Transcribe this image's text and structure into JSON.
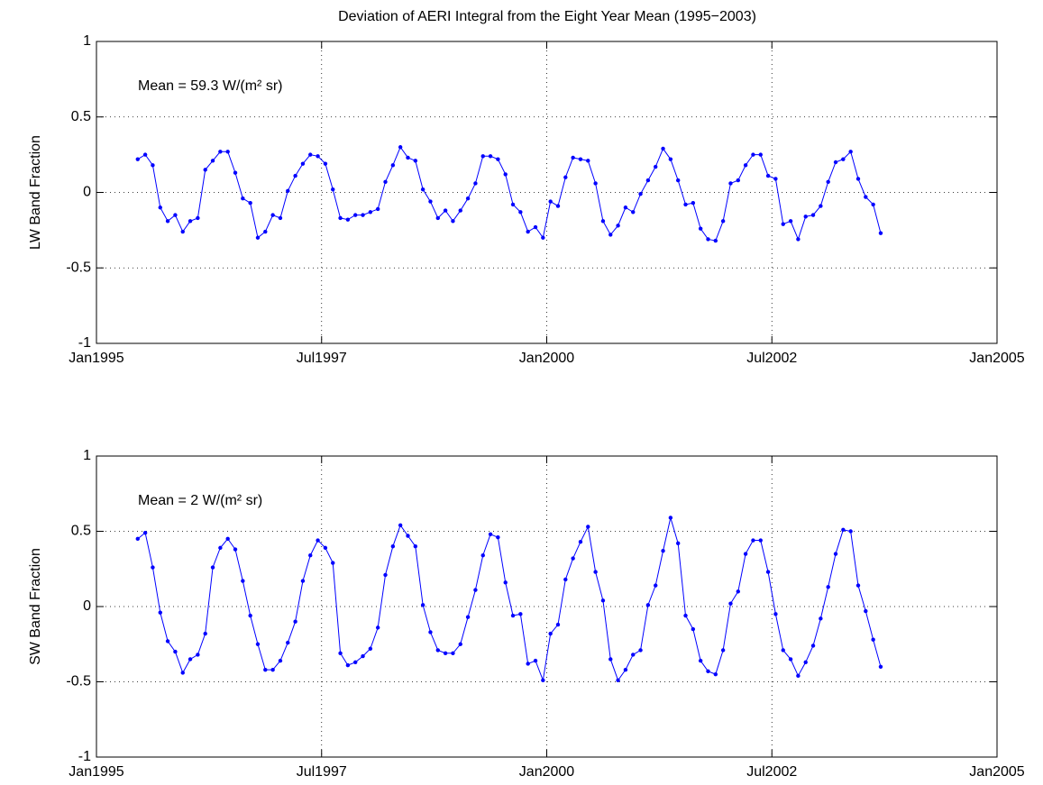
{
  "chart_data": [
    {
      "type": "line",
      "title": "Deviation of AERI Integral from the Eight Year Mean (1995−2003)",
      "ylabel": "LW Band Fraction",
      "annotation": "Mean = 59.3 W/(m² sr)",
      "color": "#0000ff",
      "grid": true,
      "x": [
        "1995-06",
        "1995-07",
        "1995-08",
        "1995-09",
        "1995-10",
        "1995-11",
        "1995-12",
        "1996-01",
        "1996-02",
        "1996-03",
        "1996-04",
        "1996-05",
        "1996-06",
        "1996-07",
        "1996-08",
        "1996-09",
        "1996-10",
        "1996-11",
        "1996-12",
        "1997-01",
        "1997-02",
        "1997-03",
        "1997-04",
        "1997-05",
        "1997-06",
        "1997-07",
        "1997-08",
        "1997-09",
        "1997-10",
        "1997-11",
        "1997-12",
        "1998-01",
        "1998-02",
        "1998-03",
        "1998-04",
        "1998-05",
        "1998-06",
        "1998-07",
        "1998-08",
        "1998-09",
        "1998-10",
        "1998-11",
        "1998-12",
        "1999-01",
        "1999-02",
        "1999-03",
        "1999-04",
        "1999-05",
        "1999-06",
        "1999-07",
        "1999-08",
        "1999-09",
        "1999-10",
        "1999-11",
        "1999-12",
        "2000-01",
        "2000-02",
        "2000-03",
        "2000-04",
        "2000-05",
        "2000-06",
        "2000-07",
        "2000-08",
        "2000-09",
        "2000-10",
        "2000-11",
        "2000-12",
        "2001-01",
        "2001-02",
        "2001-03",
        "2001-04",
        "2001-05",
        "2001-06",
        "2001-07",
        "2001-08",
        "2001-09",
        "2001-10",
        "2001-11",
        "2001-12",
        "2002-01",
        "2002-02",
        "2002-03",
        "2002-04",
        "2002-05",
        "2002-06",
        "2002-07",
        "2002-08",
        "2002-09",
        "2002-10",
        "2002-11",
        "2002-12",
        "2003-01",
        "2003-02",
        "2003-03",
        "2003-04",
        "2003-05",
        "2003-06",
        "2003-07",
        "2003-08",
        "2003-09"
      ],
      "values": [
        0.22,
        0.25,
        0.18,
        -0.1,
        -0.19,
        -0.15,
        -0.26,
        -0.19,
        -0.17,
        0.15,
        0.21,
        0.27,
        0.27,
        0.13,
        -0.04,
        -0.07,
        -0.3,
        -0.26,
        -0.15,
        -0.17,
        0.01,
        0.11,
        0.19,
        0.25,
        0.24,
        0.19,
        0.02,
        -0.17,
        -0.18,
        -0.15,
        -0.15,
        -0.13,
        -0.11,
        0.07,
        0.18,
        0.3,
        0.23,
        0.21,
        0.02,
        -0.06,
        -0.17,
        -0.12,
        -0.19,
        -0.12,
        -0.04,
        0.06,
        0.24,
        0.24,
        0.22,
        0.12,
        -0.08,
        -0.13,
        -0.26,
        -0.23,
        -0.3,
        -0.06,
        -0.09,
        0.1,
        0.23,
        0.22,
        0.21,
        0.06,
        -0.19,
        -0.28,
        -0.22,
        -0.1,
        -0.13,
        -0.01,
        0.08,
        0.17,
        0.29,
        0.22,
        0.08,
        -0.08,
        -0.07,
        -0.24,
        -0.31,
        -0.32,
        -0.19,
        0.06,
        0.08,
        0.18,
        0.25,
        0.25,
        0.11,
        0.09,
        -0.21,
        -0.19,
        -0.31,
        -0.16,
        -0.15,
        -0.09,
        0.07,
        0.2,
        0.22,
        0.27,
        0.09,
        -0.03,
        -0.08,
        -0.27
      ],
      "xlim": [
        "1995-01",
        "2005-01"
      ],
      "xticks": [
        {
          "value": "1995-01",
          "label": "Jan1995"
        },
        {
          "value": "1997-07",
          "label": "Jul1997"
        },
        {
          "value": "2000-01",
          "label": "Jan2000"
        },
        {
          "value": "2002-07",
          "label": "Jul2002"
        },
        {
          "value": "2005-01",
          "label": "Jan2005"
        }
      ],
      "ylim": [
        -1,
        1
      ],
      "yticks": [
        -1,
        -0.5,
        0,
        0.5,
        1
      ]
    },
    {
      "type": "line",
      "ylabel": "SW Band Fraction",
      "annotation": "Mean = 2 W/(m² sr)",
      "color": "#0000ff",
      "grid": true,
      "x": [
        "1995-06",
        "1995-07",
        "1995-08",
        "1995-09",
        "1995-10",
        "1995-11",
        "1995-12",
        "1996-01",
        "1996-02",
        "1996-03",
        "1996-04",
        "1996-05",
        "1996-06",
        "1996-07",
        "1996-08",
        "1996-09",
        "1996-10",
        "1996-11",
        "1996-12",
        "1997-01",
        "1997-02",
        "1997-03",
        "1997-04",
        "1997-05",
        "1997-06",
        "1997-07",
        "1997-08",
        "1997-09",
        "1997-10",
        "1997-11",
        "1997-12",
        "1998-01",
        "1998-02",
        "1998-03",
        "1998-04",
        "1998-05",
        "1998-06",
        "1998-07",
        "1998-08",
        "1998-09",
        "1998-10",
        "1998-11",
        "1998-12",
        "1999-01",
        "1999-02",
        "1999-03",
        "1999-04",
        "1999-05",
        "1999-06",
        "1999-07",
        "1999-08",
        "1999-09",
        "1999-10",
        "1999-11",
        "1999-12",
        "2000-01",
        "2000-02",
        "2000-03",
        "2000-04",
        "2000-05",
        "2000-06",
        "2000-07",
        "2000-08",
        "2000-09",
        "2000-10",
        "2000-11",
        "2000-12",
        "2001-01",
        "2001-02",
        "2001-03",
        "2001-04",
        "2001-05",
        "2001-06",
        "2001-07",
        "2001-08",
        "2001-09",
        "2001-10",
        "2001-11",
        "2001-12",
        "2002-01",
        "2002-02",
        "2002-03",
        "2002-04",
        "2002-05",
        "2002-06",
        "2002-07",
        "2002-08",
        "2002-09",
        "2002-10",
        "2002-11",
        "2002-12",
        "2003-01",
        "2003-02",
        "2003-03",
        "2003-04",
        "2003-05",
        "2003-06",
        "2003-07",
        "2003-08",
        "2003-09"
      ],
      "values": [
        0.45,
        0.49,
        0.26,
        -0.04,
        -0.23,
        -0.3,
        -0.44,
        -0.35,
        -0.32,
        -0.18,
        0.26,
        0.39,
        0.45,
        0.38,
        0.17,
        -0.06,
        -0.25,
        -0.42,
        -0.42,
        -0.36,
        -0.24,
        -0.1,
        0.17,
        0.34,
        0.44,
        0.39,
        0.29,
        -0.31,
        -0.39,
        -0.37,
        -0.33,
        -0.28,
        -0.14,
        0.21,
        0.4,
        0.54,
        0.47,
        0.4,
        0.01,
        -0.17,
        -0.29,
        -0.31,
        -0.31,
        -0.25,
        -0.07,
        0.11,
        0.34,
        0.48,
        0.46,
        0.16,
        -0.06,
        -0.05,
        -0.38,
        -0.36,
        -0.49,
        -0.18,
        -0.12,
        0.18,
        0.32,
        0.43,
        0.53,
        0.23,
        0.04,
        -0.35,
        -0.49,
        -0.42,
        -0.32,
        -0.29,
        0.01,
        0.14,
        0.37,
        0.59,
        0.42,
        -0.06,
        -0.15,
        -0.36,
        -0.43,
        -0.45,
        -0.29,
        0.02,
        0.1,
        0.35,
        0.44,
        0.44,
        0.23,
        -0.05,
        -0.29,
        -0.35,
        -0.46,
        -0.37,
        -0.26,
        -0.08,
        0.13,
        0.35,
        0.51,
        0.5,
        0.14,
        -0.03,
        -0.22,
        -0.4
      ],
      "xlim": [
        "1995-01",
        "2005-01"
      ],
      "xticks": [
        {
          "value": "1995-01",
          "label": "Jan1995"
        },
        {
          "value": "1997-07",
          "label": "Jul1997"
        },
        {
          "value": "2000-01",
          "label": "Jan2000"
        },
        {
          "value": "2002-07",
          "label": "Jul2002"
        },
        {
          "value": "2005-01",
          "label": "Jan2005"
        }
      ],
      "ylim": [
        -1,
        1
      ],
      "yticks": [
        -1,
        -0.5,
        0,
        0.5,
        1
      ]
    }
  ]
}
